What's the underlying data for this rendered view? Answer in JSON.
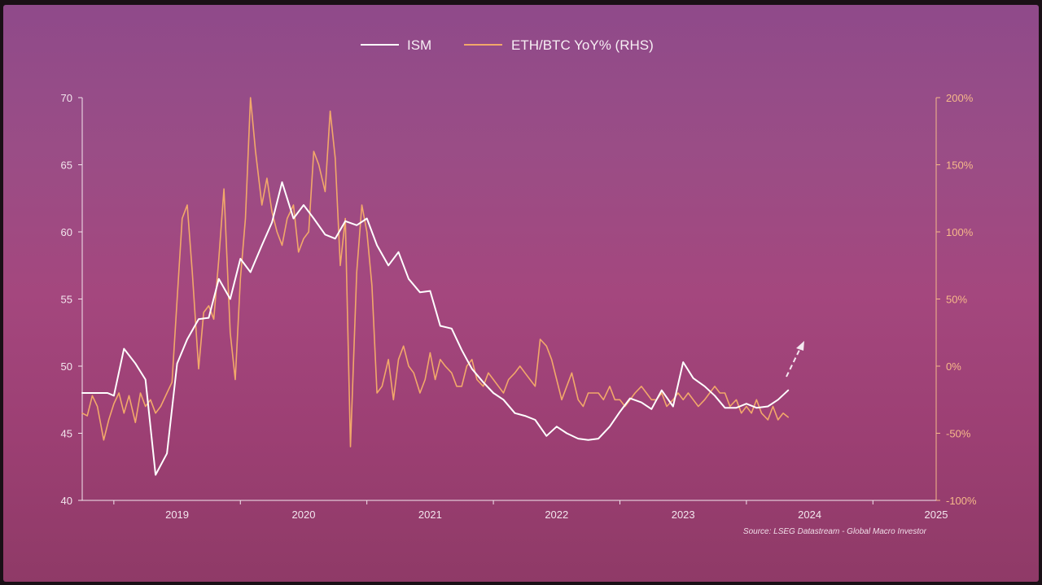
{
  "chart_data": {
    "type": "line",
    "legend": [
      "ISM",
      "ETH/BTC YoY% (RHS)"
    ],
    "legend_position": "top-center",
    "source": "Source: LSEG Datastream - Global Macro Investor",
    "x_ticks": [
      "2019",
      "2020",
      "2021",
      "2022",
      "2023",
      "2024",
      "2025"
    ],
    "xlim": [
      2018.75,
      2025.5
    ],
    "y_left": {
      "ticks": [
        "40",
        "45",
        "50",
        "55",
        "60",
        "65",
        "70"
      ],
      "lim": [
        40,
        70
      ]
    },
    "y_right": {
      "ticks": [
        "-100%",
        "-50%",
        "0%",
        "50%",
        "100%",
        "150%",
        "200%"
      ],
      "lim": [
        -100,
        200
      ]
    },
    "grid": false,
    "colors": {
      "ism": "#ffffff",
      "ethbtc": "#f2a86a",
      "axis_left": "#f3e6ee",
      "axis_right": "#f6b98a"
    },
    "series": [
      {
        "name": "ISM",
        "axis": "left",
        "color": "#ffffff",
        "x": [
          2018.75,
          2018.95,
          2019.0,
          2019.08,
          2019.17,
          2019.25,
          2019.33,
          2019.42,
          2019.5,
          2019.58,
          2019.67,
          2019.75,
          2019.83,
          2019.92,
          2020.0,
          2020.08,
          2020.17,
          2020.25,
          2020.33,
          2020.42,
          2020.5,
          2020.58,
          2020.67,
          2020.75,
          2020.83,
          2020.92,
          2021.0,
          2021.08,
          2021.17,
          2021.25,
          2021.33,
          2021.42,
          2021.5,
          2021.58,
          2021.67,
          2021.75,
          2021.83,
          2021.92,
          2022.0,
          2022.08,
          2022.17,
          2022.25,
          2022.33,
          2022.42,
          2022.5,
          2022.58,
          2022.67,
          2022.75,
          2022.83,
          2022.92,
          2023.0,
          2023.08,
          2023.17,
          2023.25,
          2023.33,
          2023.42,
          2023.5,
          2023.58,
          2023.67,
          2023.75,
          2023.83,
          2023.92,
          2024.0,
          2024.08,
          2024.17,
          2024.25,
          2024.33
        ],
        "y": [
          48.0,
          48.0,
          47.8,
          51.3,
          50.2,
          49.0,
          41.9,
          43.5,
          50.2,
          52.0,
          53.5,
          53.6,
          56.5,
          55.0,
          58.0,
          57.0,
          59.0,
          60.7,
          63.7,
          61.0,
          62.0,
          61.0,
          59.8,
          59.5,
          60.8,
          60.5,
          61.0,
          59.0,
          57.5,
          58.5,
          56.5,
          55.5,
          55.6,
          53.0,
          52.8,
          51.2,
          49.8,
          48.8,
          48.0,
          47.5,
          46.5,
          46.3,
          46.0,
          44.8,
          45.5,
          45.0,
          44.6,
          44.5,
          44.6,
          45.5,
          46.6,
          47.6,
          47.3,
          46.8,
          48.2,
          47.0,
          50.3,
          49.1,
          48.5,
          47.8,
          46.9,
          46.9,
          47.2,
          46.9,
          47.0,
          47.5,
          48.2
        ]
      },
      {
        "name": "ETH/BTC YoY% (RHS)",
        "axis": "right",
        "color": "#f2a86a",
        "x": [
          2018.75,
          2018.79,
          2018.83,
          2018.87,
          2018.92,
          2018.96,
          2019.0,
          2019.04,
          2019.08,
          2019.12,
          2019.17,
          2019.21,
          2019.25,
          2019.29,
          2019.33,
          2019.37,
          2019.42,
          2019.46,
          2019.5,
          2019.54,
          2019.58,
          2019.62,
          2019.67,
          2019.71,
          2019.75,
          2019.79,
          2019.83,
          2019.87,
          2019.92,
          2019.96,
          2020.0,
          2020.04,
          2020.08,
          2020.12,
          2020.17,
          2020.21,
          2020.25,
          2020.29,
          2020.33,
          2020.37,
          2020.42,
          2020.46,
          2020.5,
          2020.54,
          2020.58,
          2020.62,
          2020.67,
          2020.71,
          2020.75,
          2020.79,
          2020.83,
          2020.87,
          2020.92,
          2020.96,
          2021.0,
          2021.04,
          2021.08,
          2021.12,
          2021.17,
          2021.21,
          2021.25,
          2021.29,
          2021.33,
          2021.37,
          2021.42,
          2021.46,
          2021.5,
          2021.54,
          2021.58,
          2021.62,
          2021.67,
          2021.71,
          2021.75,
          2021.79,
          2021.83,
          2021.87,
          2021.92,
          2021.96,
          2022.0,
          2022.04,
          2022.08,
          2022.12,
          2022.17,
          2022.21,
          2022.25,
          2022.29,
          2022.33,
          2022.37,
          2022.42,
          2022.46,
          2022.5,
          2022.54,
          2022.58,
          2022.62,
          2022.67,
          2022.71,
          2022.75,
          2022.79,
          2022.83,
          2022.87,
          2022.92,
          2022.96,
          2023.0,
          2023.04,
          2023.08,
          2023.12,
          2023.17,
          2023.21,
          2023.25,
          2023.29,
          2023.33,
          2023.37,
          2023.42,
          2023.46,
          2023.5,
          2023.54,
          2023.58,
          2023.62,
          2023.67,
          2023.71,
          2023.75,
          2023.79,
          2023.83,
          2023.87,
          2023.92,
          2023.96,
          2024.0,
          2024.04,
          2024.08,
          2024.12,
          2024.17,
          2024.21,
          2024.25,
          2024.29,
          2024.33
        ],
        "y": [
          -35,
          -37,
          -22,
          -30,
          -55,
          -40,
          -28,
          -20,
          -35,
          -22,
          -42,
          -20,
          -30,
          -25,
          -35,
          -30,
          -20,
          -12,
          50,
          110,
          120,
          70,
          -2,
          40,
          45,
          35,
          80,
          132,
          25,
          -10,
          65,
          110,
          200,
          160,
          120,
          140,
          115,
          100,
          90,
          110,
          120,
          85,
          95,
          100,
          160,
          150,
          130,
          190,
          155,
          75,
          110,
          -60,
          70,
          120,
          100,
          60,
          -20,
          -15,
          5,
          -25,
          5,
          15,
          0,
          -5,
          -20,
          -10,
          10,
          -10,
          5,
          0,
          -5,
          -15,
          -15,
          0,
          5,
          -10,
          -15,
          -5,
          -10,
          -15,
          -20,
          -10,
          -5,
          0,
          -5,
          -10,
          -15,
          20,
          15,
          5,
          -10,
          -25,
          -15,
          -5,
          -25,
          -30,
          -20,
          -20,
          -20,
          -25,
          -15,
          -25,
          -25,
          -30,
          -25,
          -20,
          -15,
          -20,
          -25,
          -25,
          -20,
          -30,
          -25,
          -20,
          -25,
          -20,
          -25,
          -30,
          -25,
          -20,
          -15,
          -20,
          -20,
          -30,
          -25,
          -35,
          -30,
          -35,
          -25,
          -35,
          -40,
          -30,
          -40,
          -35,
          -38
        ]
      }
    ],
    "annotation": "arrow-up-right"
  }
}
